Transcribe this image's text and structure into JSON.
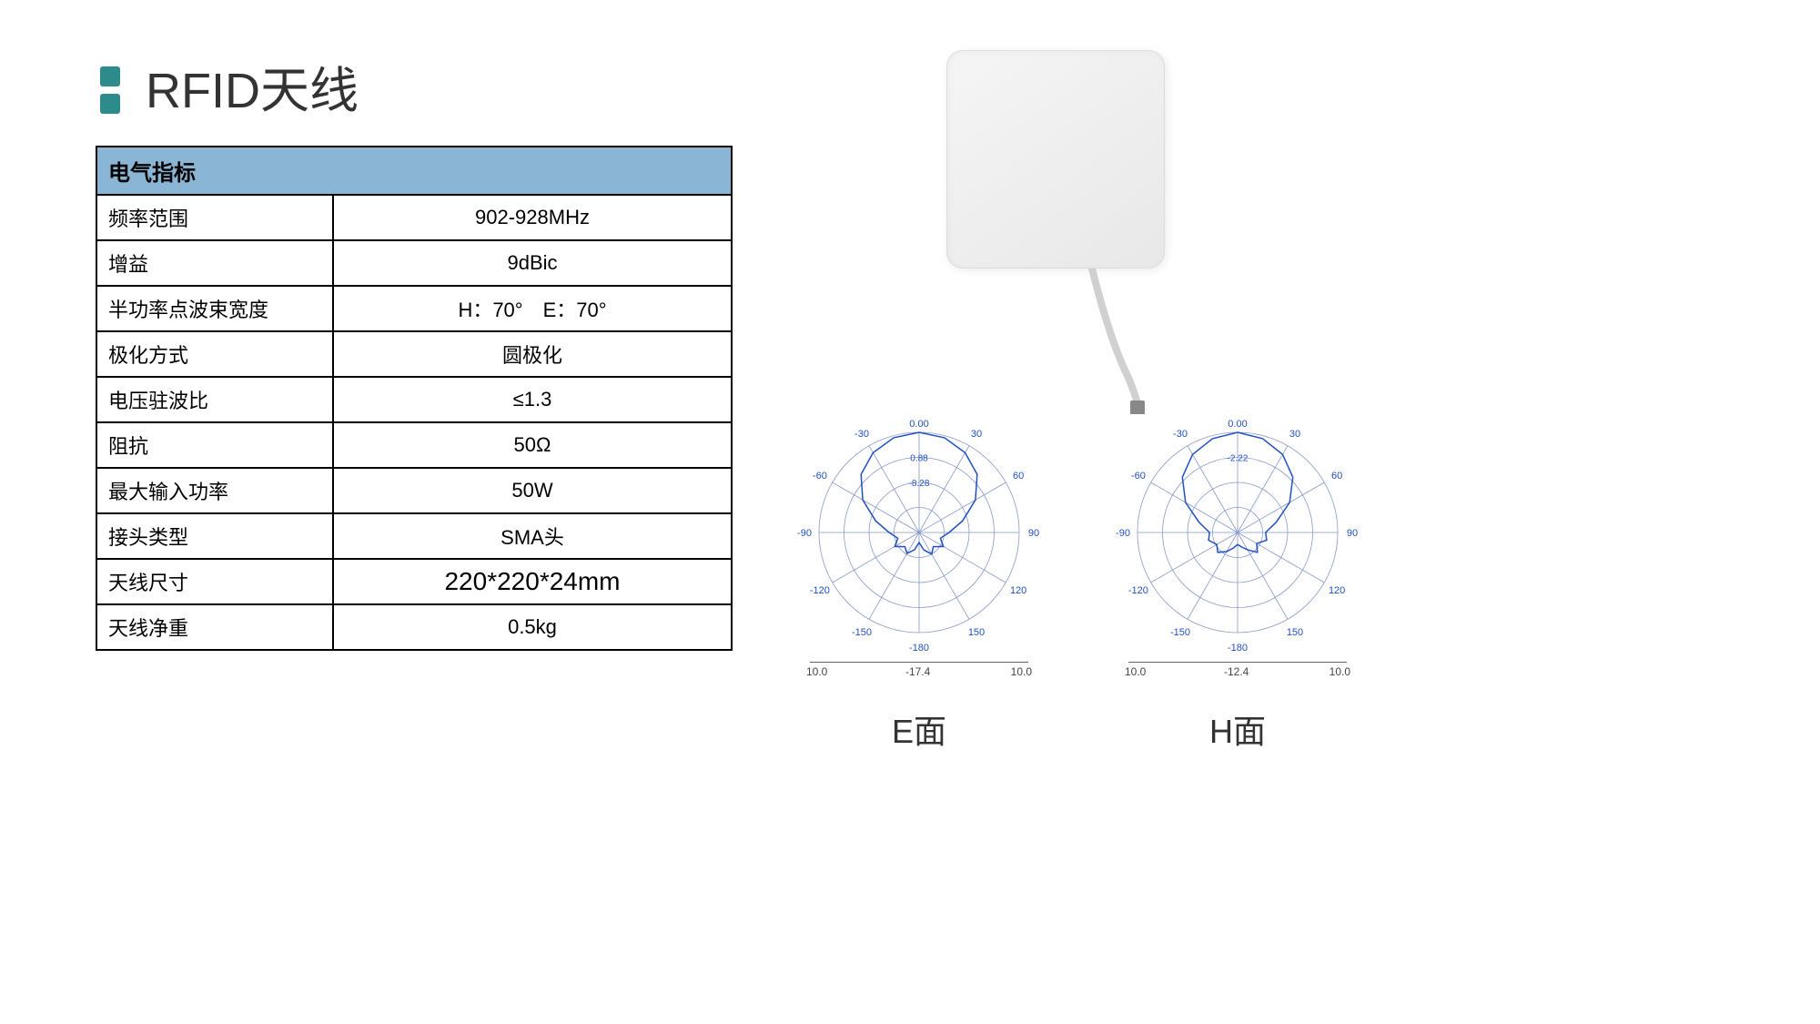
{
  "title": "RFID天线",
  "table": {
    "header": "电气指标",
    "rows": [
      {
        "label": "频率范围",
        "value": "902-928MHz"
      },
      {
        "label": "增益",
        "value": "9dBic"
      },
      {
        "label": "半功率点波束宽度",
        "value": "H：70°　E：70°"
      },
      {
        "label": "极化方式",
        "value": "圆极化"
      },
      {
        "label": "电压驻波比",
        "value": "≤1.3"
      },
      {
        "label": "阻抗",
        "value": "50Ω"
      },
      {
        "label": "最大输入功率",
        "value": "50W"
      },
      {
        "label": "接头类型",
        "value": "SMA头"
      },
      {
        "label": "天线尺寸",
        "value": "220*220*24mm",
        "dimension": true
      },
      {
        "label": "天线净重",
        "value": "0.5kg"
      }
    ]
  },
  "polar": {
    "angles": [
      -180,
      -150,
      -120,
      -90,
      -60,
      -30,
      30,
      60,
      90,
      120,
      150
    ],
    "axis_left": "10.0",
    "axis_right": "10.0",
    "line_color": "#2050c0",
    "grid_color": "#8899cc",
    "plots": [
      {
        "label": "E面",
        "top_label": "0.00",
        "ring_labels": [
          "0.88",
          "-8.28"
        ],
        "axis_center": "-17.4",
        "pattern": [
          1.0,
          0.98,
          0.92,
          0.82,
          0.65,
          0.45,
          0.3,
          0.22,
          0.28,
          0.2,
          0.25,
          0.18,
          0.1,
          0.18,
          0.24,
          0.2,
          0.28,
          0.22,
          0.3,
          0.45,
          0.65,
          0.82,
          0.92,
          0.98
        ]
      },
      {
        "label": "H面",
        "top_label": "0.00",
        "ring_labels": [
          "-2.22"
        ],
        "axis_center": "-12.4",
        "pattern": [
          1.0,
          0.97,
          0.9,
          0.78,
          0.6,
          0.4,
          0.28,
          0.3,
          0.22,
          0.28,
          0.2,
          0.15,
          0.12,
          0.16,
          0.22,
          0.28,
          0.24,
          0.3,
          0.28,
          0.4,
          0.6,
          0.78,
          0.9,
          0.97
        ]
      }
    ]
  },
  "colors": {
    "accent": "#2e8b8b",
    "table_header_bg": "#8ab5d4"
  }
}
